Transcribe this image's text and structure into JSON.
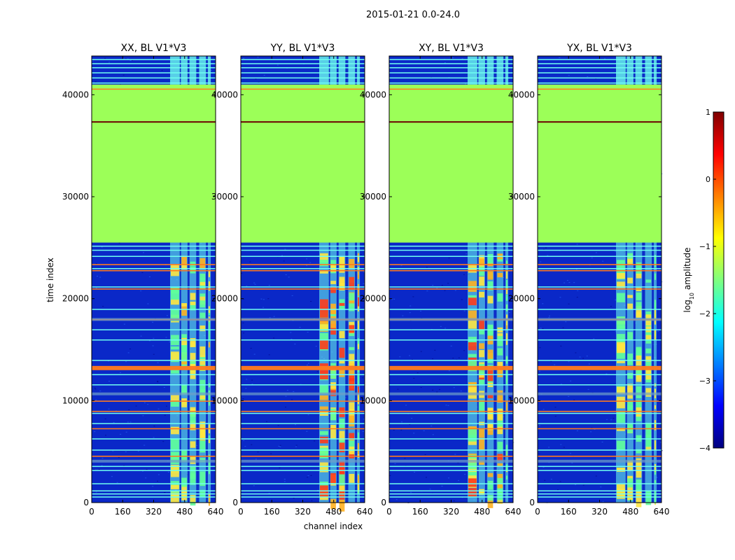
{
  "figure": {
    "title": "2015-01-21 0.0-24.0",
    "xlabel": "channel index",
    "ylabel": "time index",
    "colorbar_label": "log",
    "colorbar_label_sub": "10",
    "colorbar_label_rest": " amplitude"
  },
  "colors": {
    "background_fill": "#0a28c8",
    "flag_fill": "#9cff58",
    "orange_line": "#ff7a1e",
    "dark_line": "#6b0000",
    "cyan_line": "#6ffff0",
    "green_speckle": "#5fff9a",
    "yellow": "#ffe640",
    "red": "#ff3a1a"
  },
  "chart_data": {
    "type": "heatmap",
    "x_range": [
      0,
      640
    ],
    "y_range": [
      0,
      43800
    ],
    "x_ticks": [
      0,
      160,
      320,
      480,
      640
    ],
    "y_ticks": [
      0,
      10000,
      20000,
      30000,
      40000
    ],
    "panels": [
      {
        "title": "XX, BL V1*V3",
        "hot_level": 0.75
      },
      {
        "title": "YY, BL V1*V3",
        "hot_level": 1.0
      },
      {
        "title": "XY, BL V1*V3",
        "hot_level": 0.9
      },
      {
        "title": "YX, BL V1*V3",
        "hot_level": 0.7
      }
    ],
    "flagged_region": [
      25500,
      41000
    ],
    "dark_line_at": 37400,
    "orange_line_at": 40600,
    "bright_channels": [
      [
        405,
        455
      ],
      [
        460,
        495
      ],
      [
        505,
        540
      ],
      [
        555,
        590
      ],
      [
        600,
        615
      ]
    ],
    "colorbar": {
      "min": -4,
      "max": 1,
      "ticks": [
        1,
        0,
        -1,
        -2,
        -3,
        -4
      ],
      "colormap": [
        "#00007f",
        "#0000ff",
        "#007fff",
        "#00ffff",
        "#7fff7f",
        "#ffff00",
        "#ff7f00",
        "#ff0000",
        "#7f0000"
      ]
    }
  }
}
